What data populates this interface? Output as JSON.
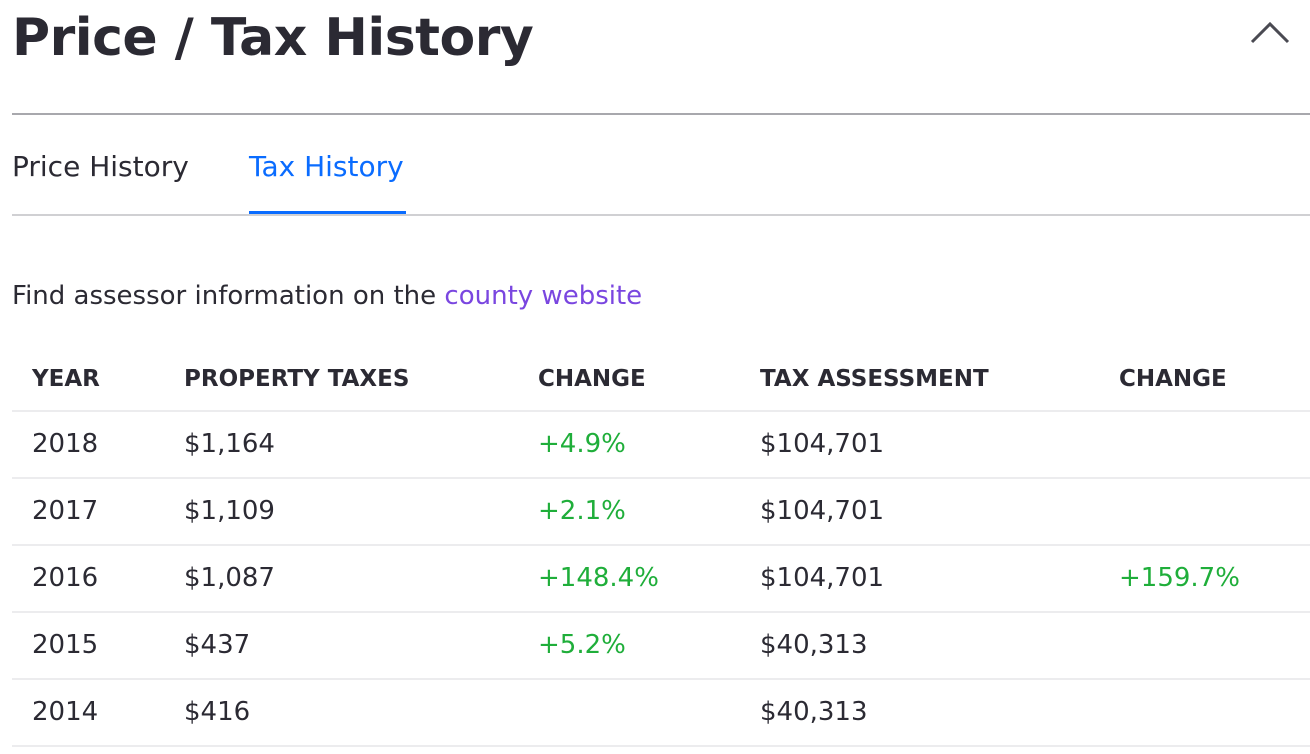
{
  "header": {
    "title": "Price / Tax History",
    "collapse_icon": "chevron-up-icon"
  },
  "tabs": [
    {
      "label": "Price History",
      "active": false
    },
    {
      "label": "Tax History",
      "active": true
    }
  ],
  "info": {
    "text": "Find assessor information on the ",
    "link": "county website"
  },
  "table": {
    "columns": [
      "YEAR",
      "PROPERTY TAXES",
      "CHANGE",
      "TAX ASSESSMENT",
      "CHANGE"
    ],
    "rows": [
      {
        "year": "2018",
        "taxes": "$1,164",
        "tax_change": "+4.9%",
        "assessment": "$104,701",
        "assessment_change": ""
      },
      {
        "year": "2017",
        "taxes": "$1,109",
        "tax_change": "+2.1%",
        "assessment": "$104,701",
        "assessment_change": ""
      },
      {
        "year": "2016",
        "taxes": "$1,087",
        "tax_change": "+148.4%",
        "assessment": "$104,701",
        "assessment_change": "+159.7%"
      },
      {
        "year": "2015",
        "taxes": "$437",
        "tax_change": "+5.2%",
        "assessment": "$40,313",
        "assessment_change": ""
      },
      {
        "year": "2014",
        "taxes": "$416",
        "tax_change": "",
        "assessment": "$40,313",
        "assessment_change": ""
      }
    ]
  },
  "colors": {
    "accent": "#0a6cff",
    "link": "#7a46e0",
    "positive": "#1fae3a",
    "text": "#2b2a33"
  }
}
